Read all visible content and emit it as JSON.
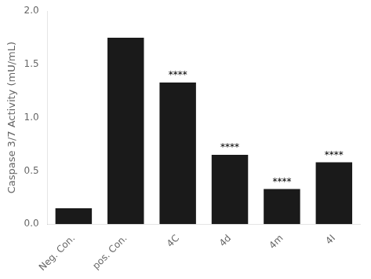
{
  "chart_data": {
    "type": "bar",
    "categories": [
      "Neg. Con.",
      "pos. Con.",
      "4C",
      "4d",
      "4m",
      "4I"
    ],
    "values": [
      0.15,
      1.75,
      1.33,
      0.65,
      0.33,
      0.58
    ],
    "color": "#1a1a1a",
    "ylabel": "Caspase 3/7 Activity (mU/mL)",
    "ylim": [
      0,
      2.0
    ],
    "yticks": [
      {
        "value": 0,
        "label": "0.0"
      },
      0.5,
      {
        "value": 1,
        "label": "1.0"
      },
      1.5,
      {
        "value": 2,
        "label": "2.0"
      }
    ],
    "grid": false,
    "annotations": [
      {
        "x": "4C",
        "text": "****"
      },
      {
        "x": "4d",
        "text": "****"
      },
      {
        "x": "4m",
        "text": "****"
      },
      {
        "x": "4I",
        "text": "****"
      }
    ]
  }
}
